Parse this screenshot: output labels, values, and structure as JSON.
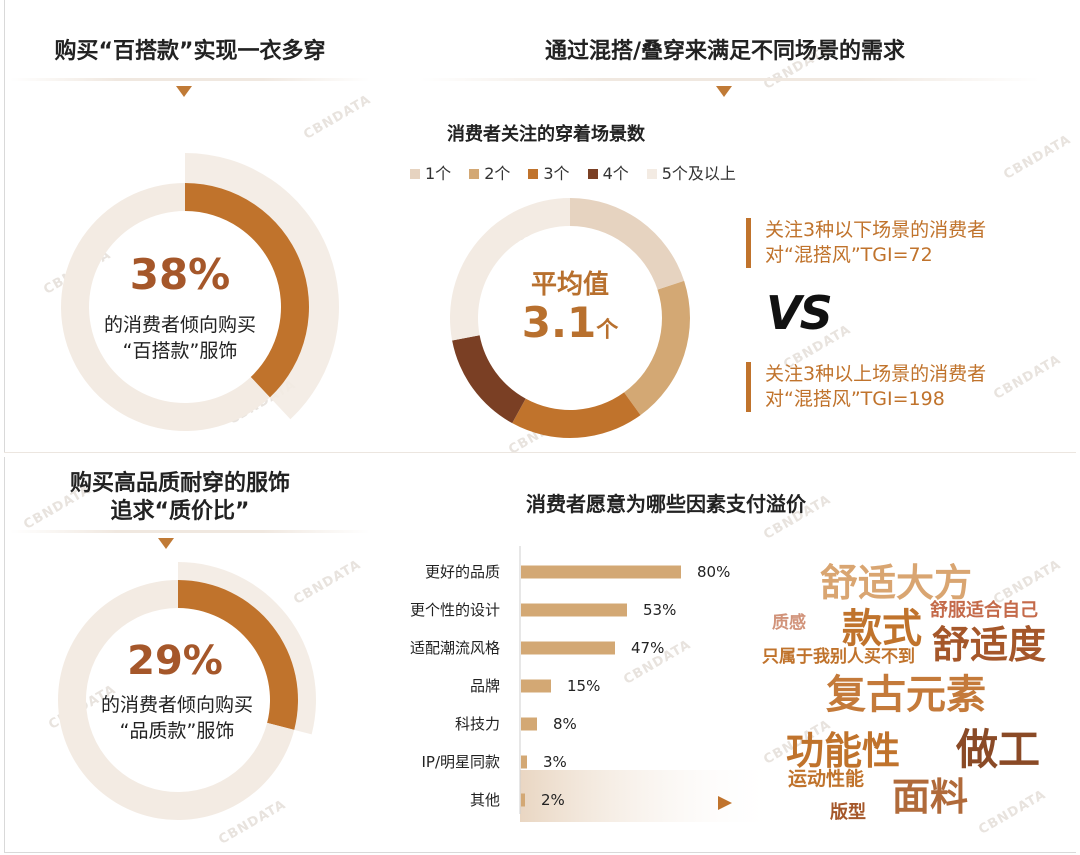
{
  "sections": {
    "top_left_title": "购买“百搭款”实现一衣多穿",
    "top_right_title": "通过混搭/叠穿来满足不同场景的需求",
    "bottom_left_title_line1": "购买高品质耐穿的服饰",
    "bottom_left_title_line2": "追求“质价比”",
    "bottom_right_title": "消费者愿意为哪些因素支付溢价"
  },
  "donut1": {
    "percent": "38%",
    "line1": "的消费者倾向购买",
    "line2": "“百搭款”服饰"
  },
  "donut2": {
    "percent": "29%",
    "line1": "的消费者倾向购买",
    "line2": "“品质款”服饰"
  },
  "scene": {
    "subtitle": "消费者关注的穿着场景数",
    "avg_label": "平均值",
    "avg_value": "3.1",
    "avg_unit": "个",
    "legend": [
      "1个",
      "2个",
      "3个",
      "4个",
      "5个及以上"
    ]
  },
  "tgi": {
    "box1_line1": "关注3种以下场景的消费者",
    "box1_line2": "对“混搭风”TGI=72",
    "vs": "VS",
    "box2_line1": "关注3种以上场景的消费者",
    "box2_line2": "对“混搭风”TGI=198"
  },
  "watermark": "CBNDATA",
  "word_cloud": [
    {
      "text": "舒适大方",
      "color": "#d9a571"
    },
    {
      "text": "质感",
      "color": "#d1937a"
    },
    {
      "text": "款式",
      "color": "#c0732c"
    },
    {
      "text": "舒服适合自己",
      "color": "#c46a4a"
    },
    {
      "text": "舒适度",
      "color": "#a5572a"
    },
    {
      "text": "只属于我别人买不到",
      "color": "#c0732c"
    },
    {
      "text": "复古元素",
      "color": "#c47a3a"
    },
    {
      "text": "功能性",
      "color": "#c0732c"
    },
    {
      "text": "做工",
      "color": "#8a4a26"
    },
    {
      "text": "运动性能",
      "color": "#c0732c"
    },
    {
      "text": "面料",
      "color": "#b06a3a"
    },
    {
      "text": "版型",
      "color": "#a5572a"
    }
  ],
  "chart_data": [
    {
      "type": "pie",
      "categories": [
        "倾向购买“百搭款”服饰",
        "其他"
      ],
      "values": [
        38,
        62
      ],
      "colors": [
        "#c0732c",
        "#f3ebe3"
      ]
    },
    {
      "type": "pie",
      "title": "消费者关注的穿着场景数",
      "categories": [
        "1个",
        "2个",
        "3个",
        "4个",
        "5个及以上"
      ],
      "values": [
        20,
        20,
        18,
        14,
        28
      ],
      "colors": [
        "#e6d3c0",
        "#d3a874",
        "#c0732c",
        "#7a3f24",
        "#f3ebe3"
      ]
    },
    {
      "type": "pie",
      "categories": [
        "倾向购买“品质款”服饰",
        "其他"
      ],
      "values": [
        29,
        71
      ],
      "colors": [
        "#c0732c",
        "#f3ebe3"
      ]
    },
    {
      "type": "bar",
      "orientation": "horizontal",
      "title": "消费者愿意为哪些因素支付溢价",
      "categories": [
        "更好的品质",
        "更个性的设计",
        "适配潮流风格",
        "品牌",
        "科技力",
        "IP/明星同款",
        "其他"
      ],
      "values": [
        80,
        53,
        47,
        15,
        8,
        3,
        2
      ],
      "value_labels": [
        "80%",
        "53%",
        "47%",
        "15%",
        "8%",
        "3%",
        "2%"
      ],
      "xlim": [
        0,
        100
      ],
      "bar_color": "#d3a874"
    }
  ]
}
